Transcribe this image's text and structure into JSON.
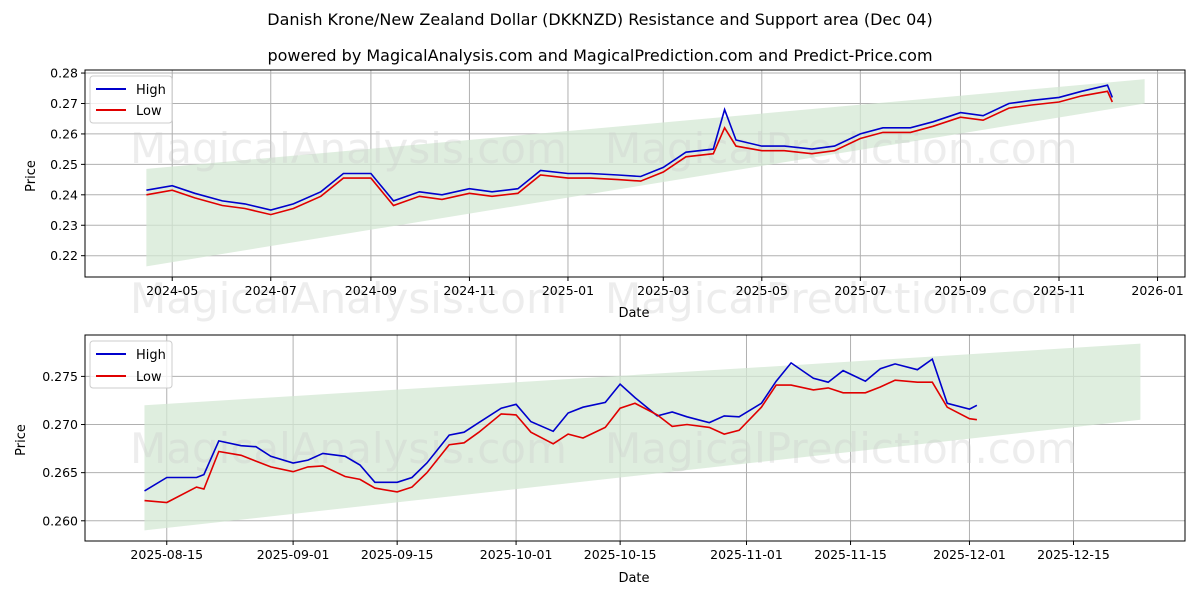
{
  "header": {
    "title": "Danish Krone/New Zealand Dollar (DKKNZD) Resistance and Support area (Dec 04)",
    "subtitle": "powered by MagicalAnalysis.com and MagicalPrediction.com and Predict-Price.com"
  },
  "watermarks": [
    "MagicalAnalysis.com",
    "MagicalPrediction.com"
  ],
  "colors": {
    "high": "#0000cc",
    "low": "#e00000",
    "band": "#d4e8d4",
    "grid": "#b0b0b0"
  },
  "chart_data": [
    {
      "type": "line",
      "title": "Danish Krone/New Zealand Dollar (DKKNZD) Resistance and Support area (Dec 04)",
      "xlabel": "Date",
      "ylabel": "Price",
      "x_ticks": [
        "2024-05",
        "2024-07",
        "2024-09",
        "2024-11",
        "2025-01",
        "2025-03",
        "2025-05",
        "2025-07",
        "2025-09",
        "2025-11",
        "2026-01"
      ],
      "y_ticks": [
        "0.22",
        "0.23",
        "0.24",
        "0.25",
        "0.26",
        "0.27",
        "0.28"
      ],
      "ylim": [
        0.213,
        0.281
      ],
      "grid": true,
      "legend": {
        "position": "upper left",
        "entries": [
          "High",
          "Low"
        ]
      },
      "x": [
        "2024-04-15",
        "2024-05-01",
        "2024-05-15",
        "2024-06-01",
        "2024-06-15",
        "2024-07-01",
        "2024-07-15",
        "2024-08-01",
        "2024-08-15",
        "2024-09-01",
        "2024-09-15",
        "2024-10-01",
        "2024-10-15",
        "2024-11-01",
        "2024-11-15",
        "2024-12-01",
        "2024-12-15",
        "2025-01-01",
        "2025-01-15",
        "2025-02-01",
        "2025-02-15",
        "2025-03-01",
        "2025-03-15",
        "2025-04-01",
        "2025-04-08",
        "2025-04-15",
        "2025-05-01",
        "2025-05-15",
        "2025-06-01",
        "2025-06-15",
        "2025-07-01",
        "2025-07-15",
        "2025-08-01",
        "2025-08-15",
        "2025-09-01",
        "2025-09-15",
        "2025-10-01",
        "2025-10-15",
        "2025-11-01",
        "2025-11-15",
        "2025-12-01",
        "2025-12-04"
      ],
      "series": [
        {
          "name": "High",
          "values": [
            0.2415,
            0.243,
            0.2405,
            0.238,
            0.237,
            0.235,
            0.237,
            0.241,
            0.247,
            0.247,
            0.238,
            0.241,
            0.24,
            0.242,
            0.241,
            0.242,
            0.248,
            0.247,
            0.247,
            0.2465,
            0.246,
            0.249,
            0.254,
            0.255,
            0.268,
            0.258,
            0.256,
            0.256,
            0.255,
            0.256,
            0.26,
            0.262,
            0.262,
            0.264,
            0.267,
            0.266,
            0.27,
            0.271,
            0.272,
            0.274,
            0.276,
            0.272
          ]
        },
        {
          "name": "Low",
          "values": [
            0.24,
            0.2415,
            0.239,
            0.2365,
            0.2355,
            0.2335,
            0.2355,
            0.2395,
            0.2455,
            0.2455,
            0.2365,
            0.2395,
            0.2385,
            0.2405,
            0.2395,
            0.2405,
            0.2465,
            0.2455,
            0.2455,
            0.245,
            0.2445,
            0.2475,
            0.2525,
            0.2535,
            0.262,
            0.256,
            0.2545,
            0.2545,
            0.2535,
            0.2545,
            0.2585,
            0.2605,
            0.2605,
            0.2625,
            0.2655,
            0.2645,
            0.2685,
            0.2695,
            0.2705,
            0.2725,
            0.274,
            0.2705
          ]
        }
      ],
      "band": {
        "x_start": "2024-04-15",
        "x_end": "2025-12-24",
        "upper": [
          0.2485,
          0.278
        ],
        "lower": [
          0.2165,
          0.27
        ]
      }
    },
    {
      "type": "line",
      "xlabel": "Date",
      "ylabel": "Price",
      "x_ticks": [
        "2025-08-15",
        "2025-09-01",
        "2025-09-15",
        "2025-10-01",
        "2025-10-15",
        "2025-11-01",
        "2025-11-15",
        "2025-12-01",
        "2025-12-15"
      ],
      "y_ticks": [
        "0.260",
        "0.265",
        "0.270",
        "0.275"
      ],
      "ylim": [
        0.2579,
        0.2793
      ],
      "grid": true,
      "legend": {
        "position": "upper left",
        "entries": [
          "High",
          "Low"
        ]
      },
      "x": [
        "2025-08-12",
        "2025-08-15",
        "2025-08-19",
        "2025-08-20",
        "2025-08-22",
        "2025-08-25",
        "2025-08-27",
        "2025-08-29",
        "2025-09-01",
        "2025-09-03",
        "2025-09-05",
        "2025-09-08",
        "2025-09-10",
        "2025-09-12",
        "2025-09-15",
        "2025-09-17",
        "2025-09-19",
        "2025-09-22",
        "2025-09-24",
        "2025-09-26",
        "2025-09-29",
        "2025-10-01",
        "2025-10-03",
        "2025-10-06",
        "2025-10-08",
        "2025-10-10",
        "2025-10-13",
        "2025-10-15",
        "2025-10-17",
        "2025-10-20",
        "2025-10-22",
        "2025-10-24",
        "2025-10-27",
        "2025-10-29",
        "2025-10-31",
        "2025-11-03",
        "2025-11-05",
        "2025-11-07",
        "2025-11-10",
        "2025-11-12",
        "2025-11-14",
        "2025-11-17",
        "2025-11-19",
        "2025-11-21",
        "2025-11-24",
        "2025-11-26",
        "2025-11-28",
        "2025-12-01",
        "2025-12-02"
      ],
      "series": [
        {
          "name": "High",
          "values": [
            0.2631,
            0.2645,
            0.2645,
            0.2648,
            0.2683,
            0.2678,
            0.2677,
            0.2667,
            0.266,
            0.2663,
            0.267,
            0.2667,
            0.2658,
            0.264,
            0.264,
            0.2645,
            0.266,
            0.2689,
            0.2692,
            0.2702,
            0.2717,
            0.2721,
            0.2703,
            0.2693,
            0.2712,
            0.2718,
            0.2723,
            0.2742,
            0.2728,
            0.2709,
            0.2713,
            0.2708,
            0.2702,
            0.2709,
            0.2708,
            0.2722,
            0.2745,
            0.2764,
            0.2748,
            0.2744,
            0.2756,
            0.2745,
            0.2758,
            0.2763,
            0.2757,
            0.2768,
            0.2722,
            0.2716,
            0.272
          ]
        },
        {
          "name": "Low",
          "values": [
            0.2621,
            0.2619,
            0.2635,
            0.2633,
            0.2672,
            0.2668,
            0.2662,
            0.2656,
            0.2651,
            0.2656,
            0.2657,
            0.2646,
            0.2643,
            0.2634,
            0.263,
            0.2635,
            0.265,
            0.2679,
            0.2681,
            0.2692,
            0.2711,
            0.271,
            0.2692,
            0.268,
            0.269,
            0.2686,
            0.2697,
            0.2717,
            0.2722,
            0.271,
            0.2698,
            0.27,
            0.2697,
            0.269,
            0.2694,
            0.2718,
            0.2741,
            0.2741,
            0.2736,
            0.2738,
            0.2733,
            0.2733,
            0.2739,
            0.2746,
            0.2744,
            0.2744,
            0.2718,
            0.2706,
            0.2705
          ]
        }
      ],
      "band": {
        "x_start": "2025-08-12",
        "x_end": "2025-12-24",
        "upper": [
          0.272,
          0.2784
        ],
        "lower": [
          0.259,
          0.2705
        ]
      }
    }
  ]
}
